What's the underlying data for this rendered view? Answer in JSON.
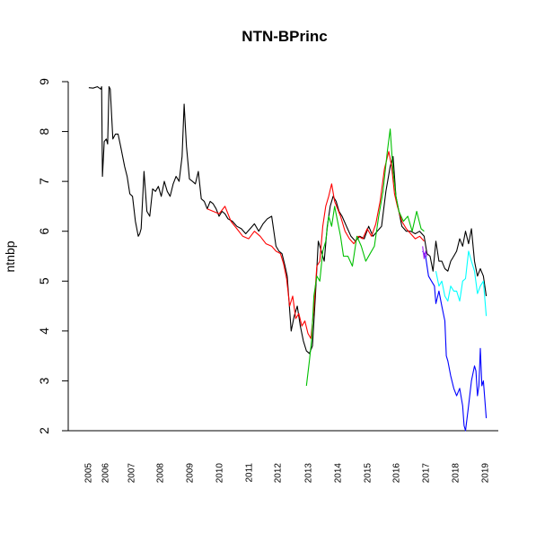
{
  "chart_data": {
    "type": "line",
    "title": "NTN-BPrinc",
    "xlabel": "",
    "ylabel": "ntnbp",
    "ylim": [
      2,
      9
    ],
    "xlim": [
      2005,
      2019.3
    ],
    "yticks": [
      "2",
      "3",
      "4",
      "5",
      "6",
      "7",
      "8",
      "9"
    ],
    "xticks": [
      "2005",
      "2006",
      "2007",
      "2008",
      "2009",
      "2010",
      "2011",
      "2012",
      "2013",
      "2014",
      "2015",
      "2016",
      "2017",
      "2018",
      "2019"
    ],
    "grid": false,
    "legend": "none",
    "series": [
      {
        "color": "#000000",
        "x": [
          2005.05,
          2005.3,
          2005.55,
          2005.75,
          2005.8,
          2005.85,
          2005.95,
          2006.05,
          2006.1,
          2006.15,
          2006.2,
          2006.3,
          2006.4,
          2006.5,
          2006.6,
          2006.75,
          2006.85,
          2006.95,
          2007.05,
          2007.15,
          2007.25,
          2007.3,
          2007.35,
          2007.45,
          2007.55,
          2007.65,
          2007.75,
          2007.85,
          2007.95,
          2008.05,
          2008.15,
          2008.25,
          2008.35,
          2008.45,
          2008.55,
          2008.65,
          2008.75,
          2008.82,
          2008.9,
          2009.0,
          2009.1,
          2009.2,
          2009.3,
          2009.4,
          2009.5,
          2009.6,
          2009.7,
          2009.8,
          2009.9,
          2010.0,
          2010.1,
          2010.2,
          2010.3,
          2010.45,
          2010.6,
          2010.75,
          2010.9,
          2011.05,
          2011.2,
          2011.35,
          2011.5,
          2011.65,
          2011.8,
          2011.95,
          2012.05,
          2012.15,
          2012.25,
          2012.32,
          2012.38,
          2012.45,
          2012.55,
          2012.65,
          2012.75,
          2012.85,
          2012.95,
          2013.05,
          2013.15,
          2013.25,
          2013.35,
          2013.45,
          2013.55,
          2013.65,
          2013.75,
          2013.85,
          2013.95,
          2014.05,
          2014.15,
          2014.3,
          2014.45,
          2014.6,
          2014.75,
          2014.9,
          2015.05,
          2015.2,
          2015.35,
          2015.5,
          2015.65,
          2015.8,
          2015.9,
          2016.0,
          2016.1,
          2016.2,
          2016.35,
          2016.5,
          2016.65,
          2016.8,
          2016.95,
          2017.05,
          2017.15,
          2017.25,
          2017.35,
          2017.45,
          2017.55,
          2017.65,
          2017.75,
          2017.85,
          2017.95,
          2018.05,
          2018.15,
          2018.25,
          2018.35,
          2018.45,
          2018.55,
          2018.65,
          2018.75,
          2018.85,
          2018.95,
          2019.05
        ],
        "y": [
          8.88,
          8.87,
          8.9,
          8.85,
          8.9,
          7.1,
          7.8,
          7.85,
          7.75,
          8.9,
          8.85,
          7.85,
          7.95,
          7.95,
          7.7,
          7.3,
          7.1,
          6.75,
          6.7,
          6.2,
          5.9,
          5.95,
          6.05,
          7.2,
          6.4,
          6.3,
          6.85,
          6.8,
          6.9,
          6.7,
          7.0,
          6.8,
          6.7,
          6.95,
          7.1,
          7.0,
          7.5,
          8.55,
          7.7,
          7.05,
          7.0,
          6.95,
          7.2,
          6.65,
          6.6,
          6.45,
          6.6,
          6.55,
          6.45,
          6.3,
          6.4,
          6.35,
          6.25,
          6.2,
          6.1,
          6.05,
          5.95,
          6.05,
          6.15,
          6.0,
          6.15,
          6.25,
          6.3,
          5.7,
          5.6,
          5.55,
          5.3,
          5.1,
          4.6,
          4.0,
          4.3,
          4.5,
          4.1,
          3.8,
          3.6,
          3.55,
          3.7,
          4.7,
          5.8,
          5.6,
          5.4,
          6.1,
          6.5,
          6.7,
          6.6,
          6.4,
          6.3,
          6.1,
          5.9,
          5.8,
          5.9,
          5.85,
          6.1,
          5.9,
          6.0,
          6.1,
          6.8,
          7.3,
          7.5,
          6.7,
          6.4,
          6.1,
          6.0,
          6.0,
          5.95,
          6.0,
          5.9,
          5.55,
          5.5,
          5.2,
          5.8,
          5.4,
          5.4,
          5.25,
          5.2,
          5.4,
          5.5,
          5.6,
          5.85,
          5.7,
          6.0,
          5.75,
          6.05,
          5.4,
          5.1,
          5.25,
          5.1,
          4.7
        ]
      },
      {
        "color": "#ff0000",
        "x": [
          2009.6,
          2009.8,
          2010.0,
          2010.2,
          2010.4,
          2010.6,
          2010.8,
          2011.0,
          2011.2,
          2011.4,
          2011.6,
          2011.8,
          2011.95,
          2012.1,
          2012.2,
          2012.3,
          2012.4,
          2012.5,
          2012.6,
          2012.7,
          2012.8,
          2012.9,
          2013.0,
          2013.1,
          2013.2,
          2013.3,
          2013.4,
          2013.5,
          2013.6,
          2013.7,
          2013.8,
          2013.9,
          2014.0,
          2014.1,
          2014.25,
          2014.4,
          2014.55,
          2014.7,
          2014.85,
          2015.0,
          2015.15,
          2015.3,
          2015.45,
          2015.6,
          2015.75,
          2015.85,
          2015.95,
          2016.05,
          2016.2,
          2016.35,
          2016.5,
          2016.65,
          2016.8,
          2016.95
        ],
        "y": [
          6.45,
          6.4,
          6.35,
          6.5,
          6.2,
          6.05,
          5.9,
          5.85,
          6.0,
          5.9,
          5.75,
          5.7,
          5.6,
          5.55,
          5.35,
          5.05,
          4.5,
          4.7,
          4.25,
          4.35,
          4.1,
          4.2,
          3.95,
          3.85,
          4.45,
          5.3,
          5.4,
          6.1,
          6.5,
          6.7,
          6.95,
          6.6,
          6.45,
          6.3,
          6.0,
          5.85,
          5.75,
          5.9,
          5.85,
          6.05,
          5.9,
          6.15,
          6.6,
          7.25,
          7.6,
          7.3,
          6.75,
          6.5,
          6.2,
          6.05,
          5.95,
          5.85,
          5.9,
          5.8
        ]
      },
      {
        "color": "#00c000",
        "x": [
          2012.95,
          2013.05,
          2013.12,
          2013.2,
          2013.3,
          2013.4,
          2013.5,
          2013.6,
          2013.7,
          2013.8,
          2013.9,
          2014.0,
          2014.1,
          2014.2,
          2014.35,
          2014.5,
          2014.65,
          2014.8,
          2014.95,
          2015.1,
          2015.25,
          2015.4,
          2015.55,
          2015.7,
          2015.8,
          2015.9,
          2016.0,
          2016.1,
          2016.25,
          2016.4,
          2016.55,
          2016.7,
          2016.85,
          2016.95
        ],
        "y": [
          2.9,
          3.4,
          3.8,
          4.7,
          5.1,
          5.0,
          5.6,
          5.8,
          6.3,
          6.1,
          6.5,
          6.2,
          5.9,
          5.5,
          5.5,
          5.3,
          5.9,
          5.7,
          5.4,
          5.55,
          5.7,
          6.3,
          6.8,
          7.6,
          8.05,
          7.2,
          6.7,
          6.4,
          6.2,
          6.3,
          6.0,
          6.4,
          6.05,
          6.0
        ]
      },
      {
        "color": "#0000ff",
        "x": [
          2016.9,
          2017.0,
          2017.1,
          2017.2,
          2017.3,
          2017.35,
          2017.45,
          2017.55,
          2017.65,
          2017.7,
          2017.75,
          2017.85,
          2017.95,
          2018.05,
          2018.15,
          2018.25,
          2018.3,
          2018.35,
          2018.45,
          2018.55,
          2018.65,
          2018.7,
          2018.75,
          2018.8,
          2018.85,
          2018.9,
          2018.95,
          2019.05
        ],
        "y": [
          5.6,
          5.5,
          5.1,
          5.0,
          4.9,
          4.55,
          4.8,
          4.5,
          4.2,
          3.5,
          3.4,
          3.1,
          2.85,
          2.7,
          2.85,
          2.5,
          2.1,
          2.0,
          2.5,
          3.0,
          3.3,
          3.2,
          2.7,
          2.9,
          3.65,
          2.9,
          3.0,
          2.25
        ]
      },
      {
        "color": "#00ffff",
        "x": [
          2017.35,
          2017.45,
          2017.55,
          2017.65,
          2017.75,
          2017.85,
          2017.95,
          2018.05,
          2018.15,
          2018.25,
          2018.35,
          2018.45,
          2018.55,
          2018.65,
          2018.75,
          2018.85,
          2018.95,
          2019.05
        ],
        "y": [
          5.2,
          4.9,
          5.0,
          4.7,
          4.6,
          4.9,
          4.8,
          4.8,
          4.6,
          5.0,
          5.05,
          5.6,
          5.4,
          5.2,
          4.75,
          4.9,
          5.0,
          4.3
        ]
      },
      {
        "color": "#a020f0",
        "x": [
          2016.9,
          2016.95,
          2017.0,
          2017.05
        ],
        "y": [
          5.7,
          5.45,
          5.6,
          5.5
        ]
      }
    ]
  }
}
